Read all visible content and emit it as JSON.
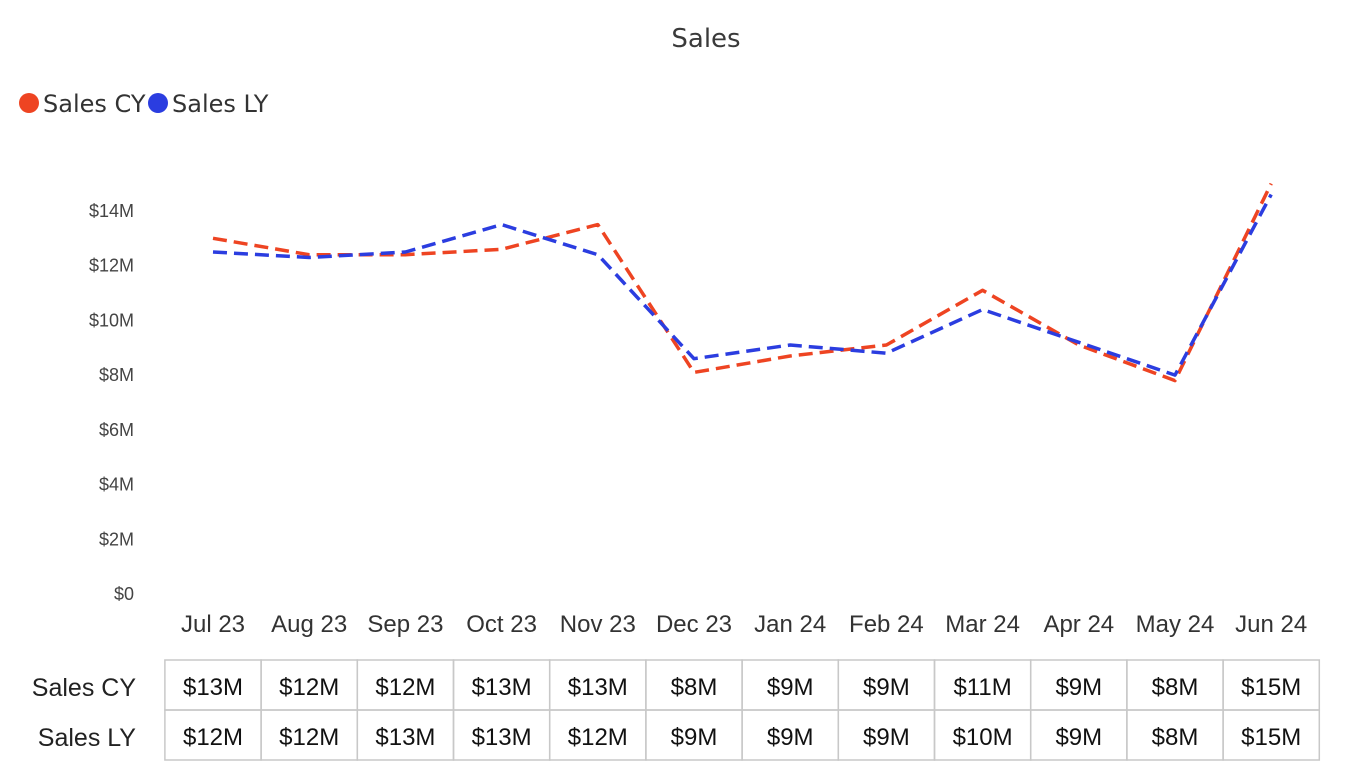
{
  "chart_data": {
    "type": "line",
    "title": "Sales",
    "categories": [
      "Jul 23",
      "Aug 23",
      "Sep 23",
      "Oct 23",
      "Nov 23",
      "Dec 23",
      "Jan 24",
      "Feb 24",
      "Mar 24",
      "Apr 24",
      "May 24",
      "Jun 24"
    ],
    "yticks": [
      "$0",
      "$2M",
      "$4M",
      "$6M",
      "$8M",
      "$10M",
      "$12M",
      "$14M"
    ],
    "ylim": [
      0,
      14
    ],
    "legend_placement": "top-left",
    "grid": false,
    "line_style": "dashed",
    "series": [
      {
        "name": "Sales CY",
        "color": "#ee4422",
        "values": [
          13.0,
          12.4,
          12.4,
          12.6,
          13.5,
          8.1,
          8.7,
          9.1,
          11.1,
          9.1,
          7.8,
          15.0
        ],
        "labels": [
          "$13M",
          "$12M",
          "$12M",
          "$13M",
          "$13M",
          "$8M",
          "$9M",
          "$9M",
          "$11M",
          "$9M",
          "$8M",
          "$15M"
        ]
      },
      {
        "name": "Sales LY",
        "color": "#2b3de0",
        "values": [
          12.5,
          12.3,
          12.5,
          13.5,
          12.4,
          8.6,
          9.1,
          8.8,
          10.4,
          9.2,
          8.0,
          14.6
        ],
        "labels": [
          "$12M",
          "$12M",
          "$13M",
          "$13M",
          "$12M",
          "$9M",
          "$9M",
          "$9M",
          "$10M",
          "$9M",
          "$8M",
          "$15M"
        ]
      }
    ]
  }
}
